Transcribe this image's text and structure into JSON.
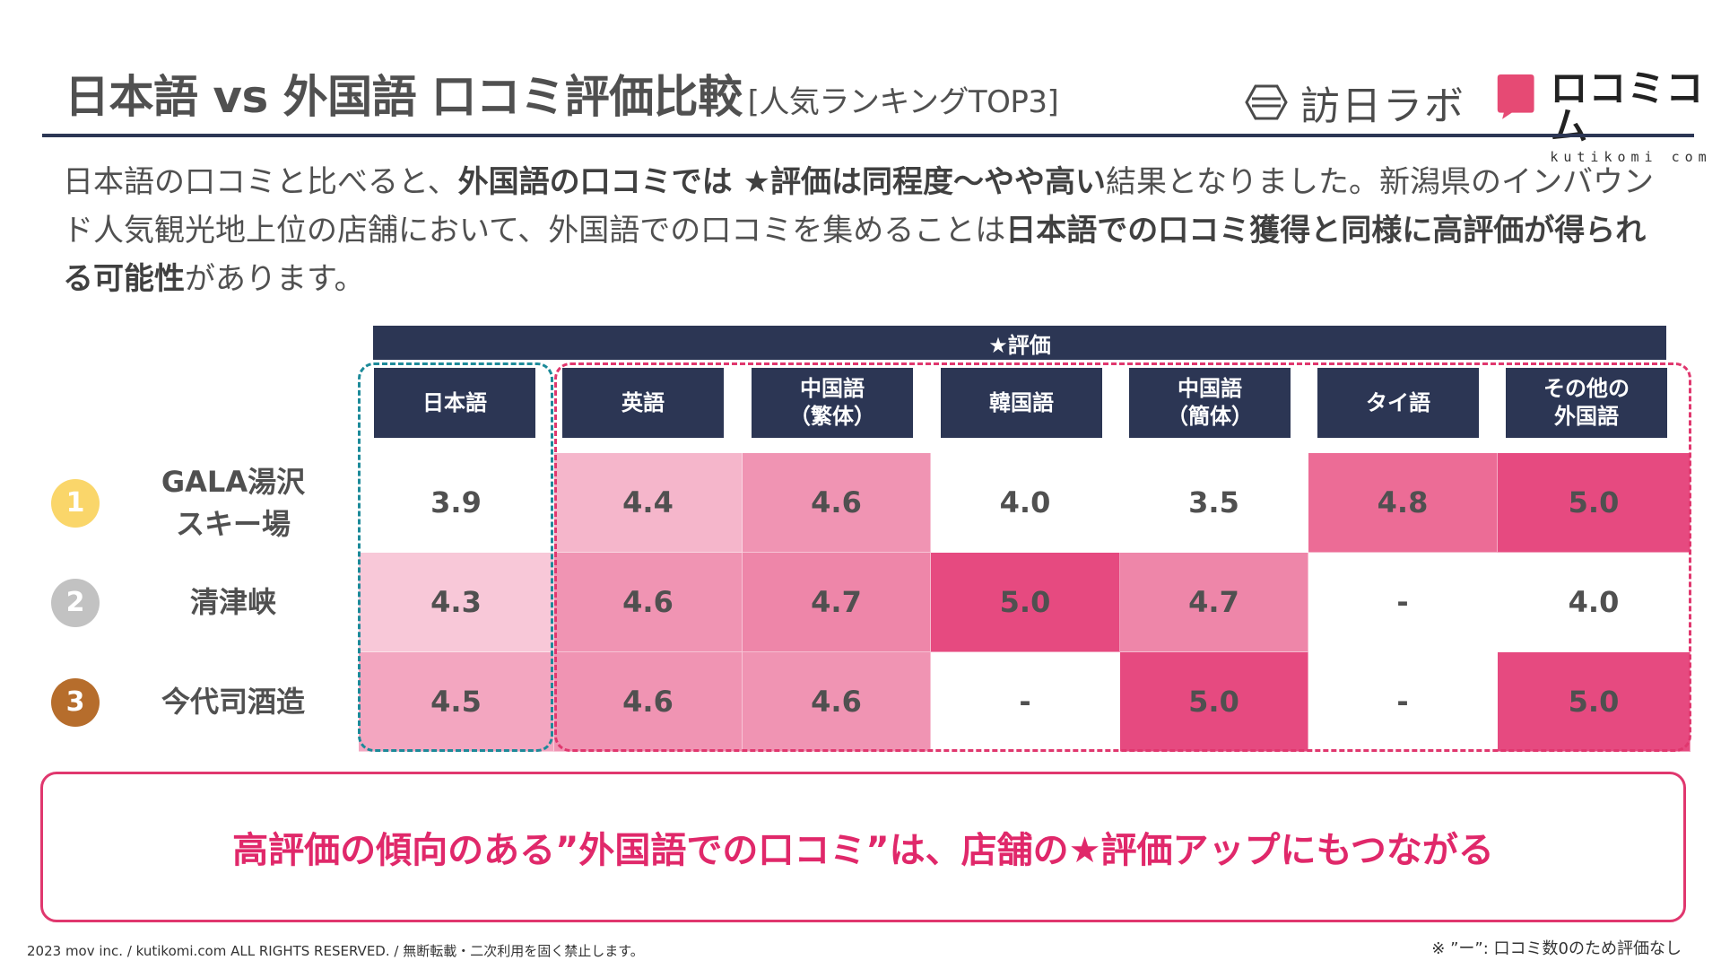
{
  "title": "日本語 vs 外国語 口コミ評価比較",
  "subtitle": "[人気ランキングTOP3]",
  "logos": {
    "hounichi": "訪日ラボ",
    "kutikomi_brand": "ロコミコム",
    "kutikomi_sub": "kutikomi com"
  },
  "lead": {
    "part1": "日本語の口コミと比べると、",
    "bold1": "外国語の口コミでは ★評価は同程度〜やや高い",
    "part2": "結果となりました。新潟県のインバウンド人気観光地上位の店舗において、外国語での口コミを集めることは",
    "bold2": "日本語での口コミ獲得と同様に高評価が得られる可能性",
    "part3": "があります。"
  },
  "table": {
    "header": "★評価",
    "columns": [
      "日本語",
      "英語",
      "中国語\n（繁体）",
      "韓国語",
      "中国語\n（簡体）",
      "タイ語",
      "その他の\n外国語"
    ],
    "rows": [
      {
        "rank": "1",
        "name": "GALA湯沢\nスキー場",
        "values": [
          "3.9",
          "4.4",
          "4.6",
          "4.0",
          "3.5",
          "4.8",
          "5.0"
        ]
      },
      {
        "rank": "2",
        "name": "清津峡",
        "values": [
          "4.3",
          "4.6",
          "4.7",
          "5.0",
          "4.7",
          "-",
          "4.0"
        ]
      },
      {
        "rank": "3",
        "name": "今代司酒造",
        "values": [
          "4.5",
          "4.6",
          "4.6",
          "-",
          "5.0",
          "-",
          "5.0"
        ]
      }
    ]
  },
  "colors": {
    "navy": "#2c3654",
    "rank1": "#fad66a",
    "rank2": "#c2c2c2",
    "rank3": "#b66d2c",
    "shade_none": "#ffffff",
    "shade_43": "#f8c8d8",
    "shade_44": "#f5b6cb",
    "shade_45": "#f3a6c0",
    "shade_46": "#f094b3",
    "shade_47": "#ee86a9",
    "shade_48": "#ec6c96",
    "shade_50": "#e64a80"
  },
  "callout": "高評価の傾向のある”外国語での口コミ”は、店舗の★評価アップにもつながる",
  "footer": "2023 mov inc. / kutikomi.com ALL RIGHTS RESERVED. / 無断転載・二次利用を固く禁止します。",
  "note": "※ ”ー”: 口コミ数0のため評価なし"
}
